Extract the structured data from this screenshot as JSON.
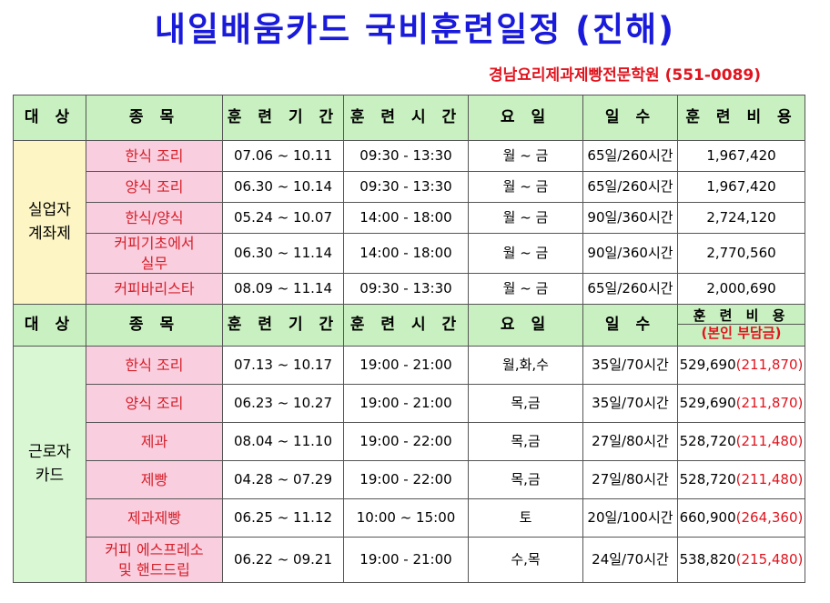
{
  "title": "내일배움카드 국비훈련일정 (진해)",
  "institution": "경남요리제과제빵전문학원 (551-0089)",
  "headers": {
    "target": "대 상",
    "course": "종 목",
    "period": "훈 련 기 간",
    "time": "훈 련 시 간",
    "days": "요 일",
    "duration": "일 수",
    "cost": "훈 련 비 용",
    "cost_note": "(본인 부담금)"
  },
  "groups": [
    {
      "target": "실업자\n계좌제",
      "rows": [
        {
          "course": "한식 조리",
          "period": "07.06 ~ 10.11",
          "time": "09:30 - 13:30",
          "days": "월 ~ 금",
          "duration": "65일/260시간",
          "cost": "1,967,420"
        },
        {
          "course": "양식 조리",
          "period": "06.30 ~ 10.14",
          "time": "09:30 - 13:30",
          "days": "월 ~ 금",
          "duration": "65일/260시간",
          "cost": "1,967,420"
        },
        {
          "course": "한식/양식",
          "period": "05.24 ~ 10.07",
          "time": "14:00 - 18:00",
          "days": "월 ~ 금",
          "duration": "90일/360시간",
          "cost": "2,724,120"
        },
        {
          "course": "커피기초에서\n실무",
          "period": "06.30 ~ 11.14",
          "time": "14:00 - 18:00",
          "days": "월 ~ 금",
          "duration": "90일/360시간",
          "cost": "2,770,560"
        },
        {
          "course": "커피바리스타",
          "period": "08.09 ~ 11.14",
          "time": "09:30 - 13:30",
          "days": "월 ~ 금",
          "duration": "65일/260시간",
          "cost": "2,000,690"
        }
      ]
    },
    {
      "target": "근로자\n카드",
      "rows": [
        {
          "course": "한식 조리",
          "period": "07.13 ~ 10.17",
          "time": "19:00 - 21:00",
          "days": "월,화,수",
          "duration": "35일/70시간",
          "cost": "529,690",
          "self": "(211,870)"
        },
        {
          "course": "양식 조리",
          "period": "06.23 ~ 10.27",
          "time": "19:00 - 21:00",
          "days": "목,금",
          "duration": "35일/70시간",
          "cost": "529,690",
          "self": "(211,870)"
        },
        {
          "course": "제과",
          "period": "08.04 ~ 11.10",
          "time": "19:00 - 22:00",
          "days": "목,금",
          "duration": "27일/80시간",
          "cost": "528,720",
          "self": "(211,480)"
        },
        {
          "course": "제빵",
          "period": "04.28 ~ 07.29",
          "time": "19:00 - 22:00",
          "days": "목,금",
          "duration": "27일/80시간",
          "cost": "528,720",
          "self": "(211,480)"
        },
        {
          "course": "제과제빵",
          "period": "06.25 ~ 11.12",
          "time": "10:00 ~ 15:00",
          "days": "토",
          "duration": "20일/100시간",
          "cost": "660,900",
          "self": "(264,360)"
        },
        {
          "course": "커피 에스프레소\n및 핸드드립",
          "period": "06.22 ~ 09.21",
          "time": "19:00 - 21:00",
          "days": "수,목",
          "duration": "24일/70시간",
          "cost": "538,820",
          "self": "(215,480)"
        }
      ]
    }
  ],
  "colors": {
    "title": "#1a1adb",
    "accent_red": "#e0141e",
    "header_bg": "#c9f0c0",
    "group1_bg": "#fdf6c4",
    "group2_bg": "#d9f7d2",
    "course_bg": "#f9cfe0"
  }
}
